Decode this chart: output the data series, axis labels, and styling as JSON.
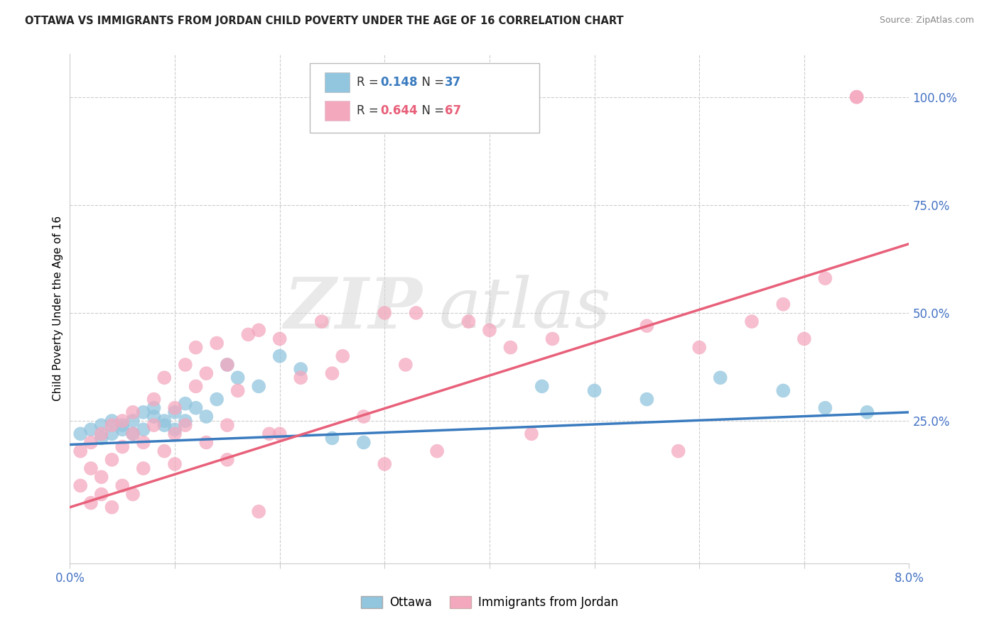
{
  "title": "OTTAWA VS IMMIGRANTS FROM JORDAN CHILD POVERTY UNDER THE AGE OF 16 CORRELATION CHART",
  "source": "Source: ZipAtlas.com",
  "ylabel": "Child Poverty Under the Age of 16",
  "xlim": [
    0.0,
    0.08
  ],
  "ylim": [
    -0.08,
    1.1
  ],
  "blue_label": "Ottawa",
  "pink_label": "Immigrants from Jordan",
  "blue_R": "0.148",
  "blue_N": "37",
  "pink_R": "0.644",
  "pink_N": "67",
  "blue_color": "#92c5de",
  "pink_color": "#f4a8be",
  "blue_line_color": "#3a7bbf",
  "pink_line_color": "#e8607a",
  "axis_color": "#4472c4",
  "watermark_zip": "ZIP",
  "watermark_atlas": "atlas",
  "blue_line_y0": 0.195,
  "blue_line_y1": 0.27,
  "pink_line_y0": 0.05,
  "pink_line_y1": 0.66,
  "blue_scatter_x": [
    0.001,
    0.002,
    0.003,
    0.003,
    0.004,
    0.004,
    0.005,
    0.005,
    0.006,
    0.006,
    0.007,
    0.007,
    0.008,
    0.008,
    0.009,
    0.009,
    0.01,
    0.01,
    0.011,
    0.011,
    0.012,
    0.013,
    0.014,
    0.015,
    0.016,
    0.018,
    0.02,
    0.022,
    0.025,
    0.028,
    0.045,
    0.05,
    0.055,
    0.062,
    0.068,
    0.072,
    0.076
  ],
  "blue_scatter_y": [
    0.22,
    0.23,
    0.24,
    0.21,
    0.25,
    0.22,
    0.23,
    0.24,
    0.25,
    0.22,
    0.27,
    0.23,
    0.26,
    0.28,
    0.24,
    0.25,
    0.27,
    0.23,
    0.29,
    0.25,
    0.28,
    0.26,
    0.3,
    0.38,
    0.35,
    0.33,
    0.4,
    0.37,
    0.21,
    0.2,
    0.33,
    0.32,
    0.3,
    0.35,
    0.32,
    0.28,
    0.27
  ],
  "pink_scatter_x": [
    0.001,
    0.001,
    0.002,
    0.002,
    0.002,
    0.003,
    0.003,
    0.003,
    0.004,
    0.004,
    0.004,
    0.005,
    0.005,
    0.005,
    0.006,
    0.006,
    0.006,
    0.007,
    0.007,
    0.008,
    0.008,
    0.009,
    0.009,
    0.01,
    0.01,
    0.01,
    0.011,
    0.011,
    0.012,
    0.012,
    0.013,
    0.013,
    0.014,
    0.015,
    0.015,
    0.016,
    0.017,
    0.018,
    0.019,
    0.02,
    0.022,
    0.024,
    0.026,
    0.028,
    0.03,
    0.033,
    0.035,
    0.038,
    0.04,
    0.042,
    0.044,
    0.046,
    0.03,
    0.032,
    0.02,
    0.025,
    0.015,
    0.018,
    0.055,
    0.06,
    0.065,
    0.058,
    0.068,
    0.07,
    0.072,
    0.075,
    0.075
  ],
  "pink_scatter_y": [
    0.18,
    0.1,
    0.14,
    0.06,
    0.2,
    0.12,
    0.08,
    0.22,
    0.16,
    0.05,
    0.24,
    0.19,
    0.1,
    0.25,
    0.22,
    0.08,
    0.27,
    0.2,
    0.14,
    0.24,
    0.3,
    0.18,
    0.35,
    0.22,
    0.28,
    0.15,
    0.38,
    0.24,
    0.33,
    0.42,
    0.36,
    0.2,
    0.43,
    0.38,
    0.24,
    0.32,
    0.45,
    0.46,
    0.22,
    0.44,
    0.35,
    0.48,
    0.4,
    0.26,
    0.15,
    0.5,
    0.18,
    0.48,
    0.46,
    0.42,
    0.22,
    0.44,
    0.5,
    0.38,
    0.22,
    0.36,
    0.16,
    0.04,
    0.47,
    0.42,
    0.48,
    0.18,
    0.52,
    0.44,
    0.58,
    1.0,
    1.0
  ]
}
